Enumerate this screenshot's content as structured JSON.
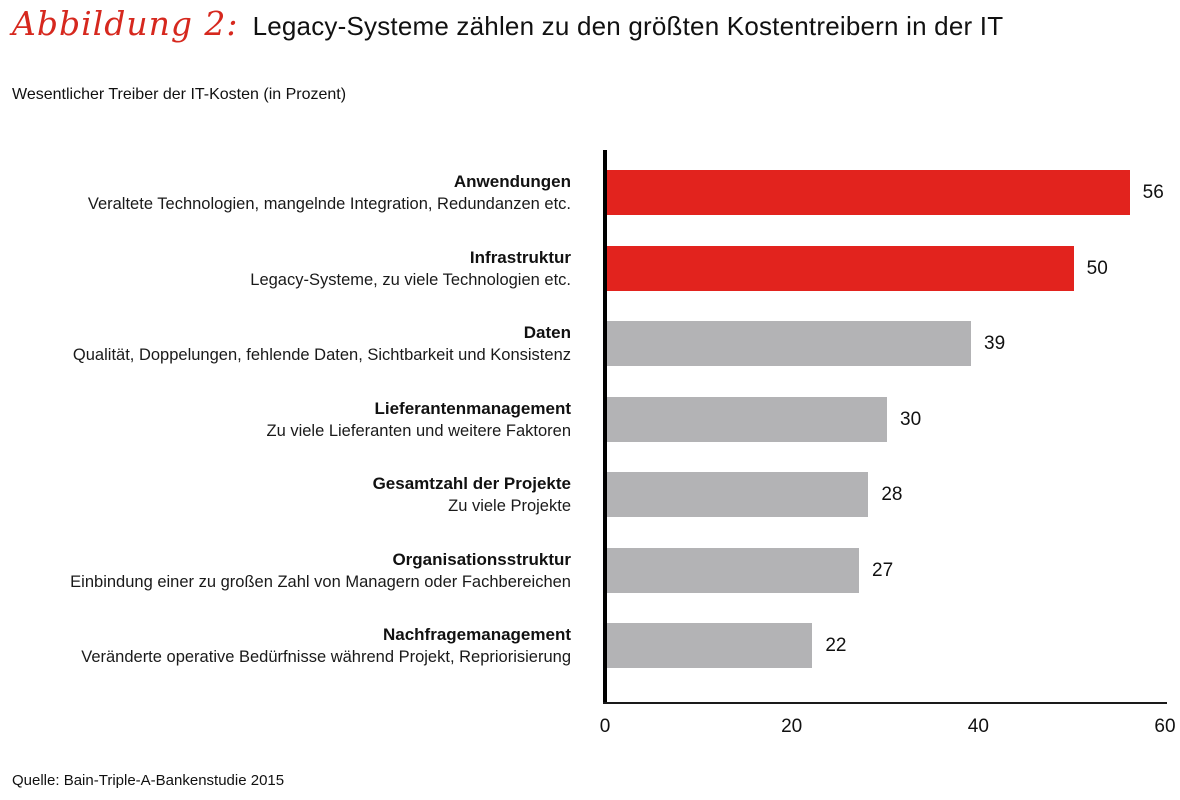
{
  "title": {
    "figure_label": "Abbildung 2:",
    "text": "Legacy-Systeme zählen zu den größten Kostentreibern in der IT"
  },
  "subtitle": "Wesentlicher Treiber der IT-Kosten (in Prozent)",
  "source": "Quelle: Bain-Triple-A-Bankenstudie 2015",
  "colors": {
    "figure_label_red": "#d6281e",
    "highlight_bar_red": "#e2231e",
    "default_bar_gray": "#b3b3b5",
    "axis_black": "#000000"
  },
  "chart_data": {
    "type": "bar",
    "orientation": "horizontal",
    "title": "Wesentlicher Treiber der IT-Kosten (in Prozent)",
    "xlabel": "",
    "ylabel": "",
    "xlim": [
      0,
      60
    ],
    "x_ticks": [
      0,
      20,
      40,
      60
    ],
    "grid": false,
    "legend": false,
    "items": [
      {
        "category": "Anwendungen",
        "description": "Veraltete Technologien, mangelnde Integration, Redundanzen etc.",
        "value": 56,
        "color": "#e2231e"
      },
      {
        "category": "Infrastruktur",
        "description": "Legacy-Systeme, zu viele Technologien etc.",
        "value": 50,
        "color": "#e2231e"
      },
      {
        "category": "Daten",
        "description": "Qualität, Doppelungen, fehlende Daten, Sichtbarkeit und Konsistenz",
        "value": 39,
        "color": "#b3b3b5"
      },
      {
        "category": "Lieferantenmanagement",
        "description": "Zu viele Lieferanten und weitere Faktoren",
        "value": 30,
        "color": "#b3b3b5"
      },
      {
        "category": "Gesamtzahl der Projekte",
        "description": "Zu viele Projekte",
        "value": 28,
        "color": "#b3b3b5"
      },
      {
        "category": "Organisationsstruktur",
        "description": "Einbindung einer zu großen Zahl von Managern oder Fachbereichen",
        "value": 27,
        "color": "#b3b3b5"
      },
      {
        "category": "Nachfragemanagement",
        "description": "Veränderte operative Bedürfnisse während Projekt, Repriorisierung",
        "value": 22,
        "color": "#b3b3b5"
      }
    ]
  }
}
